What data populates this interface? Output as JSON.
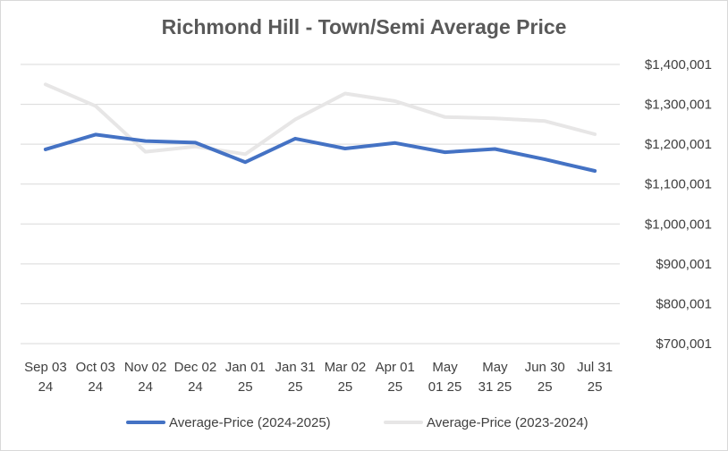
{
  "chart_data": {
    "type": "line",
    "title": "Richmond Hill - Town/Semi Average Price",
    "xlabel": "",
    "ylabel": "",
    "categories": [
      [
        "Sep 03",
        "24"
      ],
      [
        "Oct 03",
        "24"
      ],
      [
        "Nov 02",
        "24"
      ],
      [
        "Dec 02",
        "24"
      ],
      [
        "Jan 01",
        "25"
      ],
      [
        "Jan 31",
        "25"
      ],
      [
        "Mar 02",
        "25"
      ],
      [
        "Apr 01",
        "25"
      ],
      [
        "May",
        "01 25"
      ],
      [
        "May",
        "31 25"
      ],
      [
        "Jun 30",
        "25"
      ],
      [
        "Jul 31",
        "25"
      ]
    ],
    "y_ticks": [
      "$700,001",
      "$800,001",
      "$900,001",
      "$1,000,001",
      "$1,100,001",
      "$1,200,001",
      "$1,300,001",
      "$1,400,001"
    ],
    "ylim": [
      700001,
      1400001
    ],
    "y_axis_position": "right",
    "grid": true,
    "legend_position": "bottom",
    "series": [
      {
        "name": "Average-Price (2024-2025)",
        "color": "#4472c4",
        "values": [
          1187000,
          1224000,
          1208000,
          1204000,
          1155000,
          1214000,
          1189000,
          1203000,
          1180000,
          1188000,
          1162000,
          1133000
        ]
      },
      {
        "name": "Average-Price (2023-2024)",
        "color": "#e7e6e6",
        "values": [
          1350000,
          1296000,
          1181000,
          1194000,
          1175000,
          1262000,
          1327000,
          1308000,
          1268000,
          1265000,
          1258000,
          1225000
        ]
      }
    ]
  }
}
